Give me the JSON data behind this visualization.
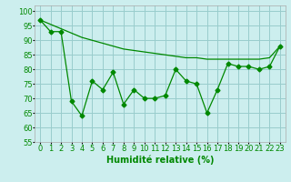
{
  "x": [
    0,
    1,
    2,
    3,
    4,
    5,
    6,
    7,
    8,
    9,
    10,
    11,
    12,
    13,
    14,
    15,
    16,
    17,
    18,
    19,
    20,
    21,
    22,
    23
  ],
  "y_data": [
    97,
    93,
    93,
    69,
    64,
    76,
    73,
    79,
    68,
    73,
    70,
    70,
    71,
    80,
    76,
    75,
    65,
    73,
    82,
    81,
    81,
    80,
    81,
    88
  ],
  "y_trend": [
    97,
    95.5,
    94,
    92.5,
    91,
    90,
    89,
    88,
    87,
    86.5,
    86,
    85.5,
    85,
    84.5,
    84,
    84,
    83.5,
    83.5,
    83.5,
    83.5,
    83.5,
    83.5,
    84,
    88
  ],
  "line_color": "#008800",
  "marker": "D",
  "marker_size": 2.5,
  "bg_color": "#cceeee",
  "grid_color": "#99cccc",
  "xlabel": "Humidité relative (%)",
  "ylim": [
    55,
    102
  ],
  "yticks": [
    55,
    60,
    65,
    70,
    75,
    80,
    85,
    90,
    95,
    100
  ],
  "xlim": [
    -0.5,
    23.5
  ],
  "xlabel_fontsize": 7,
  "tick_fontsize": 6
}
